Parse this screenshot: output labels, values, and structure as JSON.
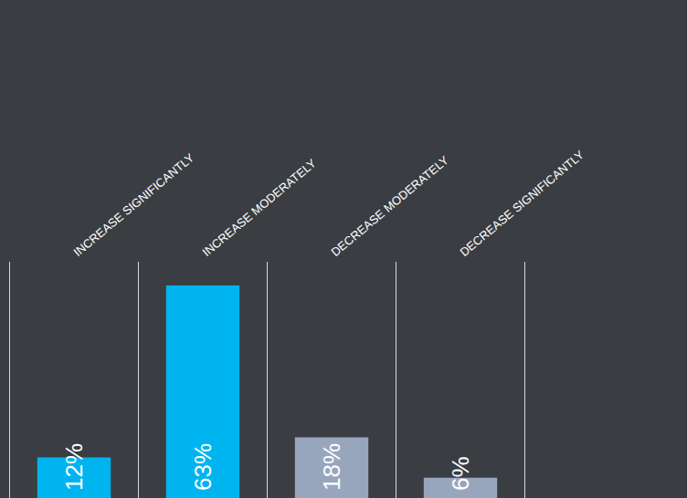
{
  "chart_data": {
    "type": "bar",
    "categories": [
      "INCREASE SIGNIFICANTLY",
      "INCREASE MODERATELY",
      "DECREASE MODERATELY",
      "DECREASE SIGNIFICANTLY"
    ],
    "values": [
      12,
      63,
      18,
      6
    ],
    "value_labels": [
      "12%",
      "63%",
      "18%",
      "6%"
    ],
    "colors": [
      "#00b4f0",
      "#00b4f0",
      "#98a6bd",
      "#98a6bd"
    ],
    "ylim": [
      0,
      70
    ],
    "grid": false,
    "data_labels": true,
    "tick_labels": "x"
  }
}
